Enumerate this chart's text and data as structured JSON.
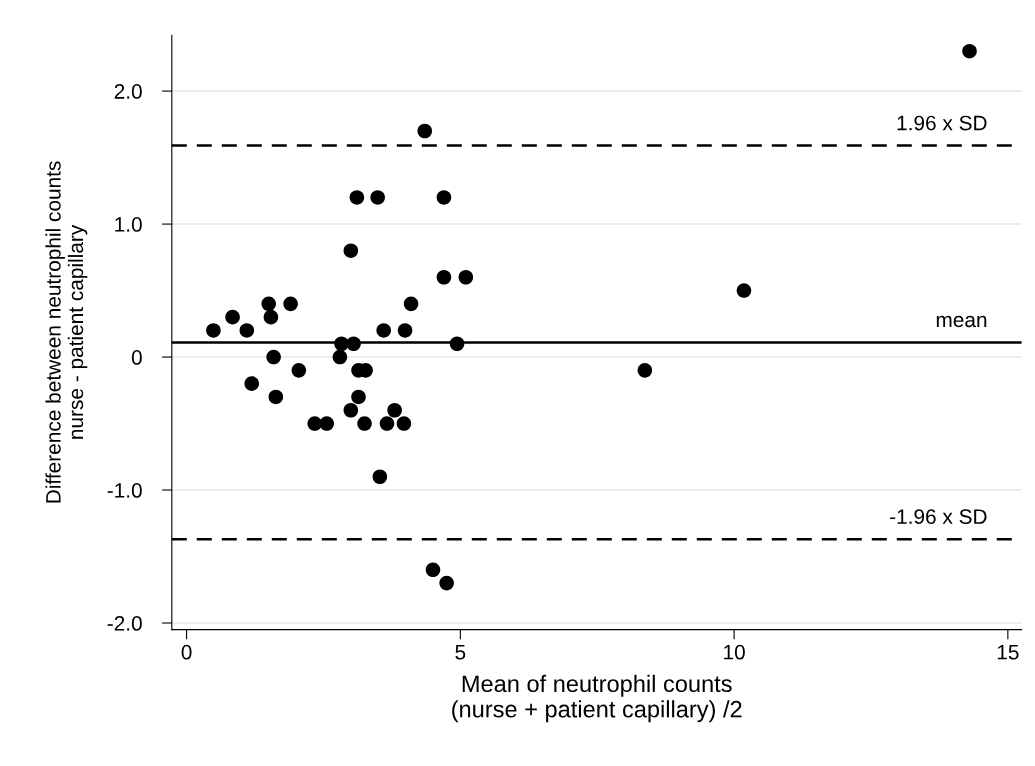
{
  "chart_data": {
    "type": "scatter",
    "xlabel": "Mean of neutrophil counts\n(nurse + patient capillary) /2",
    "ylabel": "Difference between neutrophil counts\nnurse - patient capillary",
    "x": [
      0.49,
      0.84,
      1.1,
      1.5,
      1.54,
      1.9,
      1.59,
      1.19,
      2.05,
      1.63,
      2.34,
      2.56,
      2.83,
      3.05,
      2.8,
      3.0,
      3.11,
      3.49,
      4.7,
      3.14,
      3.27,
      3.14,
      3.0,
      3.25,
      3.66,
      3.97,
      3.8,
      3.6,
      3.99,
      4.1,
      4.7,
      5.1,
      4.94,
      3.53,
      4.5,
      4.75,
      4.35,
      10.18,
      8.37,
      14.3
    ],
    "values": [
      0.2,
      0.3,
      0.2,
      0.4,
      0.3,
      0.4,
      0.0,
      -0.2,
      -0.1,
      -0.3,
      -0.5,
      -0.5,
      0.1,
      0.1,
      0.0,
      0.8,
      1.2,
      1.2,
      1.2,
      -0.1,
      -0.1,
      -0.3,
      -0.4,
      -0.5,
      -0.5,
      -0.5,
      -0.4,
      0.2,
      0.2,
      0.4,
      0.6,
      0.6,
      0.1,
      -0.9,
      -1.6,
      -1.7,
      1.7,
      0.5,
      -0.1,
      2.3
    ],
    "color": "#000000",
    "marker": "circle",
    "xlim": [
      -0.27,
      15.25
    ],
    "xticks": [
      0,
      5,
      10,
      15
    ],
    "ylim": [
      -2.05,
      2.42
    ],
    "yticks": [
      {
        "value": -2,
        "label": "-2.0"
      },
      {
        "value": -1,
        "label": "-1.0"
      },
      0,
      {
        "value": 1,
        "label": "1.0"
      },
      {
        "value": 2,
        "label": "2.0"
      }
    ],
    "grid": "y",
    "ref_lines": [
      {
        "axis": "y",
        "value": 1.59,
        "label": "1.96 x SD",
        "color": "#000000",
        "line_style": "dashed"
      },
      {
        "axis": "y",
        "value": 0.11,
        "label": "mean",
        "color": "#000000",
        "line_style": "solid"
      },
      {
        "axis": "y",
        "value": -1.37,
        "label": "-1.96 x SD",
        "color": "#000000",
        "line_style": "dashed"
      }
    ]
  }
}
